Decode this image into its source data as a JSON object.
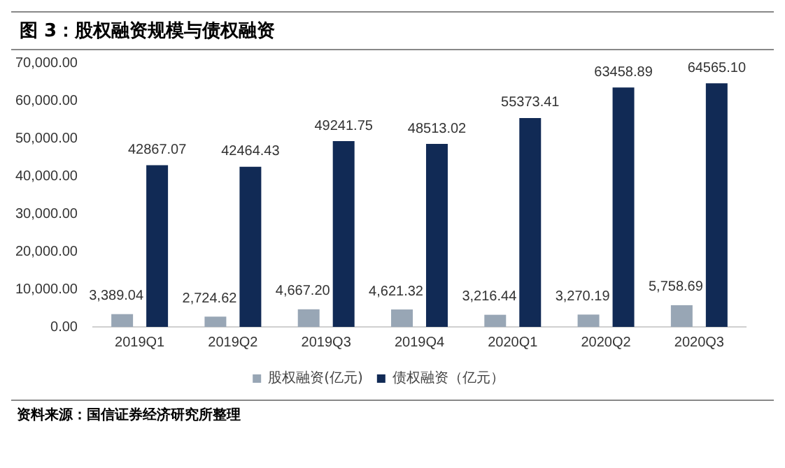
{
  "chart_data": {
    "type": "bar",
    "title": "图 3：股权融资规模与债权融资",
    "categories": [
      "2019Q1",
      "2019Q2",
      "2019Q3",
      "2019Q4",
      "2020Q1",
      "2020Q2",
      "2020Q3"
    ],
    "series": [
      {
        "name": "股权融资(亿元)",
        "color": "#98a6b5",
        "values": [
          3389.04,
          2724.62,
          4667.2,
          4621.32,
          3216.44,
          3270.19,
          5758.69
        ],
        "value_labels": [
          "3,389.04",
          "2,724.62",
          "4,667.20",
          "4,621.32",
          "3,216.44",
          "3,270.19",
          "5,758.69"
        ]
      },
      {
        "name": "债权融资（亿元）",
        "color": "#112a55",
        "values": [
          42867.07,
          42464.43,
          49241.75,
          48513.02,
          55373.41,
          63458.89,
          64565.1
        ],
        "value_labels": [
          "42867.07",
          "42464.43",
          "49241.75",
          "48513.02",
          "55373.41",
          "63458.89",
          "64565.10"
        ]
      }
    ],
    "ylim": [
      0,
      70000
    ],
    "yticks": [
      {
        "value": 0,
        "label": "0.00"
      },
      {
        "value": 10000,
        "label": "10,000.00"
      },
      {
        "value": 20000,
        "label": "20,000.00"
      },
      {
        "value": 30000,
        "label": "30,000.00"
      },
      {
        "value": 40000,
        "label": "40,000.00"
      },
      {
        "value": 50000,
        "label": "50,000.00"
      },
      {
        "value": 60000,
        "label": "60,000.00"
      },
      {
        "value": 70000,
        "label": "70,000.00"
      }
    ],
    "grid": false,
    "legend": "bottom",
    "annotations": [
      "资料来源：国信证券经济研究所整理"
    ]
  }
}
